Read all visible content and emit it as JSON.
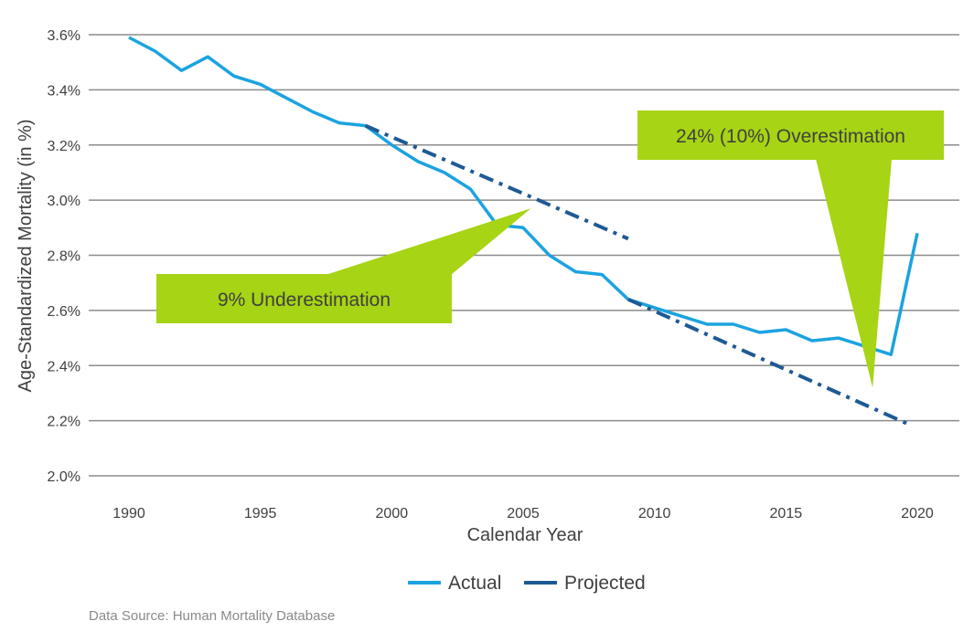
{
  "chart_data": {
    "type": "line",
    "xlabel": "Calendar Year",
    "ylabel": "Age-Standardized Mortality (in %)",
    "xlim": [
      1990,
      2020
    ],
    "ylim": [
      2.0,
      3.6
    ],
    "x_ticks": [
      1990,
      1995,
      2000,
      2005,
      2010,
      2015,
      2020
    ],
    "y_ticks": [
      {
        "value": 2.0,
        "label": "2.0%"
      },
      {
        "value": 2.2,
        "label": "2.2%"
      },
      {
        "value": 2.4,
        "label": "2.4%"
      },
      {
        "value": 2.6,
        "label": "2.6%"
      },
      {
        "value": 2.8,
        "label": "2.8%"
      },
      {
        "value": 3.0,
        "label": "3.0%"
      },
      {
        "value": 3.2,
        "label": "3.2%"
      },
      {
        "value": 3.4,
        "label": "3.4%"
      },
      {
        "value": 3.6,
        "label": "3.6%"
      }
    ],
    "grid": "horizontal",
    "legend_position": "bottom-center",
    "series": [
      {
        "name": "Actual",
        "color": "#1ba3e0",
        "style": "solid",
        "x": [
          1990,
          1991,
          1992,
          1993,
          1994,
          1995,
          1996,
          1997,
          1998,
          1999,
          2000,
          2001,
          2002,
          2003,
          2004,
          2005,
          2006,
          2007,
          2008,
          2009,
          2010,
          2011,
          2012,
          2013,
          2014,
          2015,
          2016,
          2017,
          2018,
          2019,
          2020
        ],
        "values": [
          3.59,
          3.54,
          3.47,
          3.52,
          3.45,
          3.42,
          3.37,
          3.32,
          3.28,
          3.27,
          3.2,
          3.14,
          3.1,
          3.04,
          2.91,
          2.9,
          2.8,
          2.74,
          2.73,
          2.64,
          2.61,
          2.58,
          2.55,
          2.55,
          2.52,
          2.53,
          2.49,
          2.5,
          2.47,
          2.44,
          2.88
        ]
      },
      {
        "name": "Projected",
        "color": "#1e5a94",
        "style": "dashdot",
        "segments": [
          {
            "x": [
              1999,
              2009
            ],
            "values": [
              3.27,
              2.86
            ]
          },
          {
            "x": [
              2009,
              2019.6
            ],
            "values": [
              2.64,
              2.19
            ]
          }
        ]
      }
    ],
    "annotations": [
      {
        "text": "9% Underestimation",
        "pointer_x": 2005.3,
        "pointer_y": 2.97
      },
      {
        "text": "24% (10%) Overestimation",
        "pointer_x": 2018.3,
        "pointer_y": 2.32
      }
    ],
    "annotation_color": "#a7d414",
    "grid_color": "#8c8c8c"
  },
  "source": "Data Source: Human Mortality Database"
}
